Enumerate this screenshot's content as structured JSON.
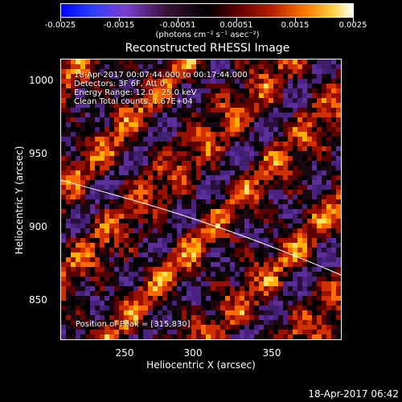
{
  "colorbar": {
    "ticks": [
      "-0.0025",
      "-0.0015",
      "-0.00051",
      "0.00051",
      "0.0015",
      "0.0025"
    ],
    "unit": "(photons cm⁻² s⁻¹ asec⁻²)"
  },
  "plot": {
    "title": "Reconstructed RHESSI Image",
    "xlabel": "Heliocentric X (arcsec)",
    "ylabel": "Heliocentric Y (arcsec)",
    "xticks": [
      "250",
      "300",
      "350"
    ],
    "yticks": [
      "1000",
      "950",
      "900",
      "850"
    ],
    "annotations": {
      "time": "18-Apr-2017 00:07:44.000 to 00:17:44.000",
      "detectors": "Detectors: 3F 6F, Att 0",
      "energy": "Energy Range: 12.0 - 25.0 keV",
      "clean": "Clean    Total counts: 1.67E+04",
      "peak": "Position of Peak = [315,830]"
    }
  },
  "footer": {
    "timestamp": "18-Apr-2017 06:42"
  }
}
